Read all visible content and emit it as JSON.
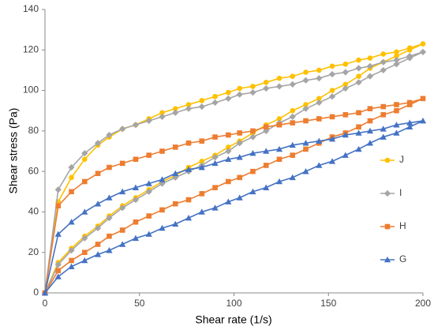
{
  "chart_data": {
    "type": "line",
    "xlabel": "Shear rate (1/s)",
    "ylabel": "Shear stress (Pa)",
    "x": [
      0,
      7,
      14,
      21,
      28,
      34,
      41,
      48,
      55,
      62,
      69,
      76,
      83,
      90,
      97,
      103,
      110,
      117,
      124,
      131,
      138,
      145,
      152,
      159,
      166,
      172,
      179,
      186,
      193,
      200,
      193,
      186,
      179,
      172,
      166,
      159,
      152,
      145,
      138,
      131,
      124,
      117,
      110,
      103,
      97,
      90,
      83,
      76,
      69,
      62,
      55,
      48,
      41,
      34,
      28,
      21,
      14,
      7,
      0
    ],
    "series": [
      {
        "name": "J",
        "color": "#ffc000",
        "marker": "circle",
        "values": [
          0,
          45,
          57,
          66,
          73,
          77,
          81,
          83,
          86,
          89,
          91,
          93,
          95,
          97,
          99,
          101,
          102,
          104,
          106,
          107,
          109,
          110,
          112,
          113,
          115,
          116,
          118,
          119,
          121,
          123,
          120,
          117,
          114,
          111,
          107,
          103,
          100,
          96,
          93,
          90,
          86,
          83,
          79,
          75,
          72,
          68,
          65,
          62,
          58,
          55,
          51,
          47,
          43,
          38,
          33,
          28,
          22,
          15,
          0
        ]
      },
      {
        "name": "I",
        "color": "#a5a5a5",
        "marker": "diamond",
        "values": [
          0,
          51,
          62,
          69,
          74,
          78,
          81,
          83,
          85,
          87,
          89,
          91,
          92,
          94,
          96,
          98,
          99,
          101,
          102,
          103,
          105,
          106,
          108,
          109,
          111,
          112,
          114,
          115,
          117,
          119,
          116,
          113,
          110,
          107,
          104,
          101,
          97,
          94,
          91,
          87,
          84,
          80,
          77,
          74,
          70,
          67,
          63,
          60,
          57,
          54,
          50,
          46,
          42,
          37,
          32,
          27,
          21,
          14,
          0
        ]
      },
      {
        "name": "H",
        "color": "#ed7d31",
        "marker": "square",
        "values": [
          0,
          43,
          50,
          55,
          59,
          62,
          64,
          66,
          68,
          70,
          72,
          74,
          75,
          77,
          78,
          79,
          80,
          82,
          83,
          84,
          85,
          86,
          87,
          88,
          89,
          91,
          92,
          93,
          94,
          96,
          93,
          90,
          88,
          85,
          82,
          79,
          77,
          74,
          71,
          68,
          66,
          63,
          60,
          57,
          55,
          52,
          49,
          46,
          44,
          41,
          38,
          35,
          31,
          28,
          24,
          20,
          16,
          11,
          0
        ]
      },
      {
        "name": "G",
        "color": "#4472c4",
        "marker": "triangle",
        "values": [
          0,
          29,
          35,
          40,
          44,
          47,
          50,
          52,
          54,
          56,
          59,
          61,
          62,
          64,
          66,
          67,
          69,
          70,
          71,
          73,
          74,
          75,
          76,
          78,
          79,
          80,
          81,
          83,
          84,
          85,
          82,
          79,
          77,
          74,
          71,
          68,
          65,
          63,
          60,
          57,
          55,
          52,
          50,
          47,
          45,
          42,
          40,
          37,
          34,
          32,
          29,
          27,
          24,
          21,
          19,
          16,
          13,
          8,
          0
        ]
      }
    ],
    "xlim": [
      0,
      200
    ],
    "xticks": [
      0,
      50,
      100,
      150,
      200
    ],
    "ylim": [
      0,
      140
    ],
    "yticks": [
      0,
      20,
      40,
      60,
      80,
      100,
      120,
      140
    ],
    "grid": false,
    "legend": "right"
  }
}
